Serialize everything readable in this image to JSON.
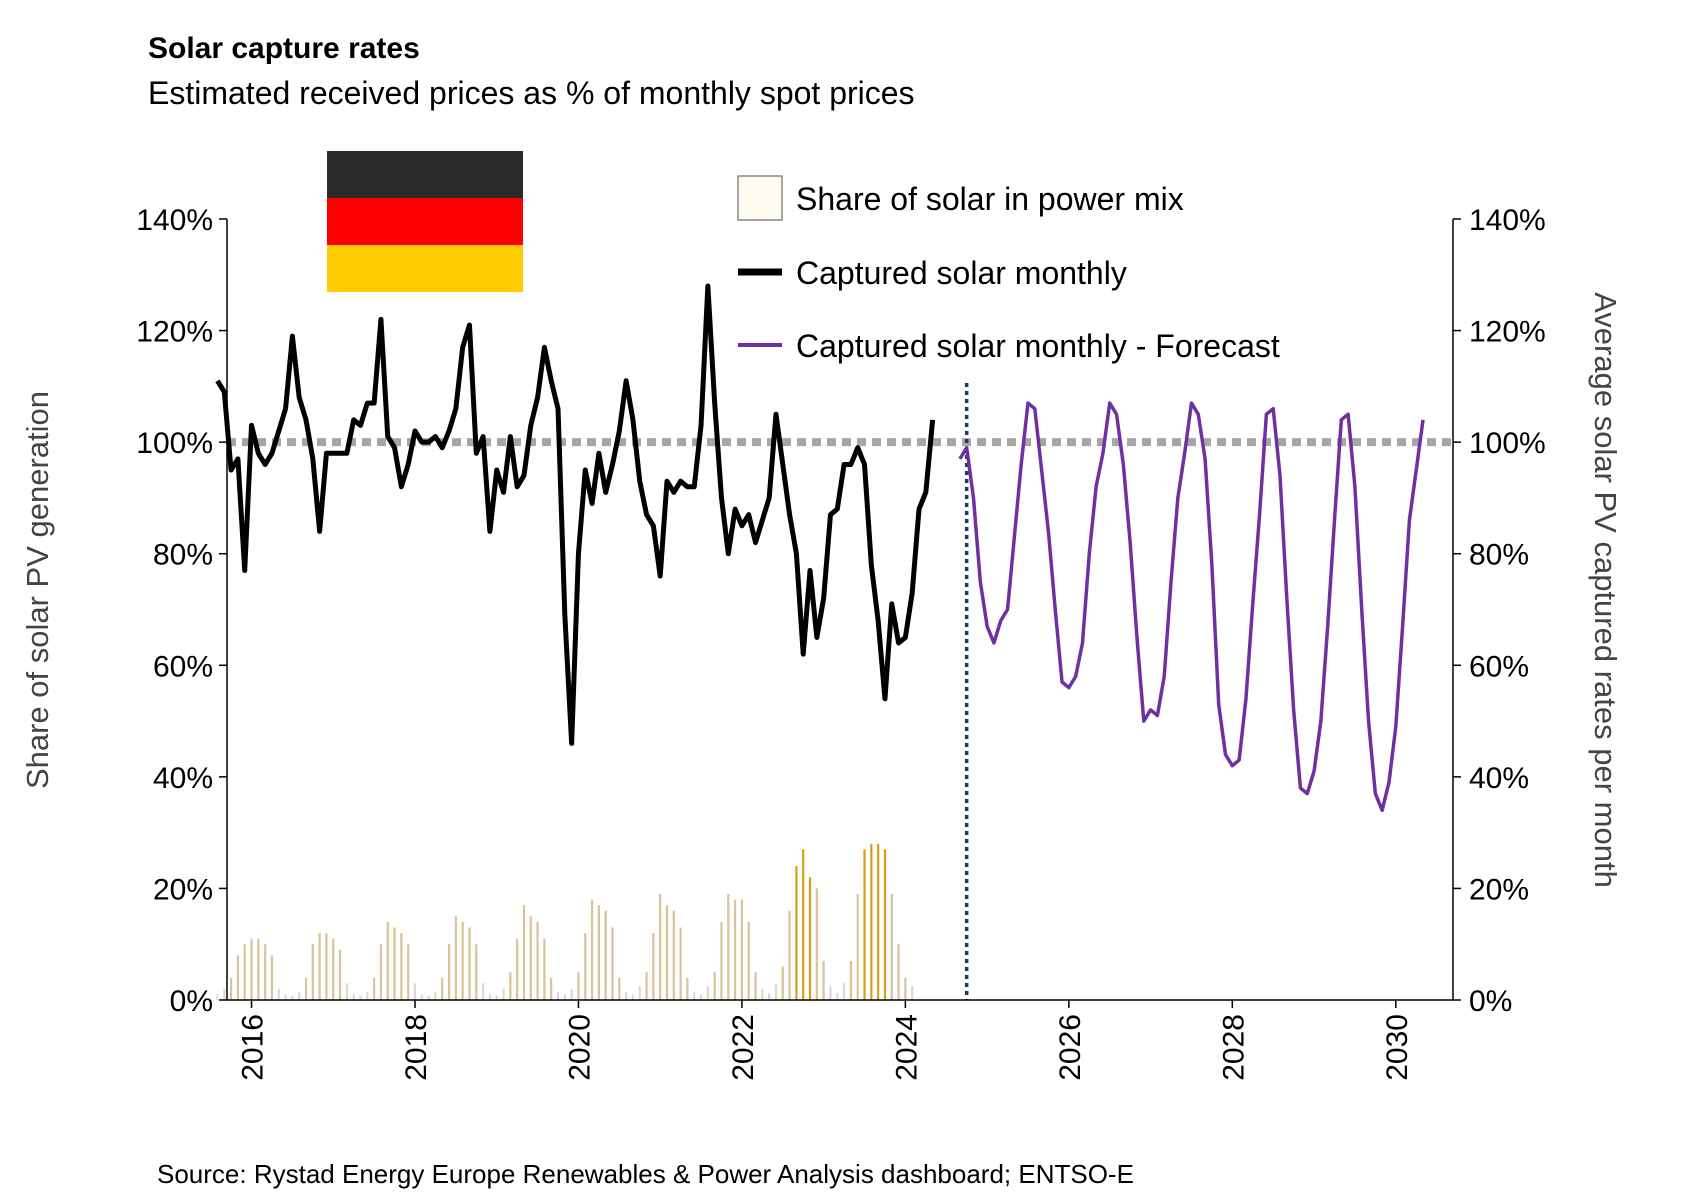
{
  "chart_data": {
    "type": "line",
    "title": "Solar capture rates",
    "subtitle": "Estimated received prices as % of monthly spot prices",
    "source": "Source: Rystad Energy Europe Renewables & Power Analysis dashboard; ENTSO-E",
    "flag": "Germany",
    "ylabel_left": "Share of solar PV generation",
    "ylabel_right": "Average solar PV captured rates per month",
    "ylim": [
      0,
      140
    ],
    "y_ticks": [
      "0%",
      "20%",
      "40%",
      "60%",
      "80%",
      "100%",
      "120%",
      "140%"
    ],
    "y_tick_values": [
      0,
      20,
      40,
      60,
      80,
      100,
      120,
      140
    ],
    "xlim": [
      2015.7,
      2030.7
    ],
    "x_ticks": [
      "2016",
      "2018",
      "2020",
      "2022",
      "2024",
      "2026",
      "2028",
      "2030"
    ],
    "x_tick_values": [
      2016,
      2018,
      2020,
      2022,
      2024,
      2026,
      2028,
      2030
    ],
    "reference_line": {
      "value": 100,
      "style": "dotted",
      "color": "#a6a6a6"
    },
    "forecast_divider": 2024.75,
    "legend": {
      "solar_share": "Share of solar in power mix",
      "captured": "Captured solar monthly",
      "forecast": "Captured solar monthly - Forecast"
    },
    "colors": {
      "captured": "#000000",
      "forecast": "#7030a0",
      "bar_low": "#d9d9d9",
      "bar_mid": "#d9c39a",
      "bar_high": "#d4a017",
      "reference": "#a6a6a6",
      "divider": "#1f3864",
      "flag_black": "#2b2b2b",
      "flag_red": "#ff0000",
      "flag_gold": "#ffcc00"
    },
    "start_month": "2015-08",
    "series": [
      {
        "name": "Captured solar monthly",
        "start_month": "2015-08",
        "values": [
          111,
          109,
          95,
          97,
          77,
          103,
          98,
          96,
          98,
          102,
          106,
          119,
          108,
          104,
          97,
          84,
          98,
          98,
          98,
          98,
          104,
          103,
          107,
          107,
          122,
          101,
          99,
          92,
          96,
          102,
          100,
          100,
          101,
          99,
          102,
          106,
          117,
          121,
          98,
          101,
          84,
          95,
          91,
          101,
          92,
          94,
          103,
          108,
          117,
          111,
          106,
          69,
          46,
          80,
          95,
          89,
          98,
          91,
          96,
          102,
          111,
          104,
          93,
          87,
          85,
          76,
          93,
          91,
          93,
          92,
          92,
          103,
          128,
          107,
          90,
          80,
          88,
          85,
          87,
          82,
          86,
          90,
          105,
          96,
          87,
          80,
          62,
          77,
          65,
          72,
          87,
          88,
          96,
          96,
          99,
          96,
          78,
          68,
          54,
          71,
          64,
          65,
          73,
          88,
          91,
          104
        ]
      },
      {
        "name": "Captured solar monthly - Forecast",
        "start_month": "2024-09",
        "values": [
          97,
          99,
          90,
          75,
          67,
          64,
          68,
          70,
          83,
          96,
          107,
          106,
          95,
          84,
          70,
          57,
          56,
          58,
          64,
          80,
          92,
          98,
          107,
          105,
          96,
          82,
          65,
          50,
          52,
          51,
          58,
          75,
          90,
          98,
          107,
          105,
          97,
          78,
          53,
          44,
          42,
          43,
          54,
          71,
          87,
          105,
          106,
          94,
          72,
          52,
          38,
          37,
          41,
          50,
          67,
          86,
          104,
          105,
          92,
          70,
          50,
          37,
          34,
          39,
          49,
          67,
          86,
          95,
          104
        ]
      },
      {
        "name": "Share of solar in power mix",
        "type": "bar",
        "start_month": "2015-08",
        "values": [
          1,
          2,
          4,
          8,
          10,
          11,
          11,
          10,
          8,
          2,
          1,
          0.8,
          1.5,
          4,
          10,
          12,
          12,
          11,
          9,
          3,
          1,
          0.8,
          1.5,
          4,
          10,
          14,
          13,
          12,
          10,
          3,
          1,
          0.8,
          1.5,
          4,
          10,
          15,
          14,
          13,
          10,
          3,
          1,
          0.8,
          2,
          5,
          11,
          17,
          15,
          14,
          11,
          4,
          1.5,
          1,
          2,
          5,
          12,
          18,
          17,
          16,
          13,
          4,
          1.5,
          1,
          2.5,
          5,
          12,
          19,
          17,
          16,
          13,
          4,
          1.5,
          1,
          2.5,
          5,
          14,
          19,
          18,
          18,
          14,
          5,
          2,
          1.2,
          3,
          6,
          16,
          24,
          27,
          22,
          20,
          7,
          2.5,
          1.3,
          3,
          7,
          19,
          27,
          28,
          28,
          27,
          19,
          10,
          4,
          2.5
        ]
      }
    ]
  }
}
